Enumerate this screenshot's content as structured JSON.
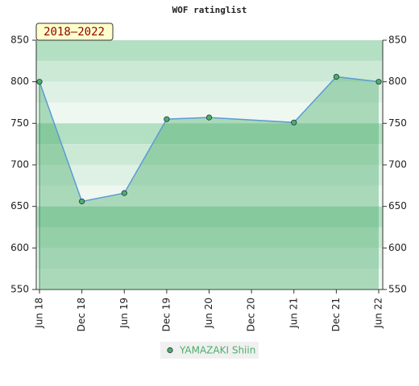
{
  "chart_data": {
    "type": "line",
    "title": "WOF ratinglist",
    "badge": "2018–2022",
    "categories": [
      "Jun 18",
      "Dec 18",
      "Jun 19",
      "Dec 19",
      "Jun 20",
      "Dec 20",
      "Jun 21",
      "Dec 21",
      "Jun 22"
    ],
    "series": [
      {
        "name": "YAMAZAKI Shiin",
        "color": "#4caf6a",
        "line_color": "#5b9bd5",
        "x": [
          "Jun 18",
          "Dec 18",
          "Jun 19",
          "Dec 19",
          "Jun 20",
          "Jun 21",
          "Dec 21",
          "Jun 22"
        ],
        "values": [
          800,
          656,
          666,
          755,
          757,
          751,
          806,
          800
        ]
      }
    ],
    "ylim": [
      550,
      850
    ],
    "yticks": [
      550,
      600,
      650,
      700,
      750,
      800,
      850
    ],
    "y2lim": [
      550,
      850
    ],
    "y2ticks": [
      550,
      600,
      650,
      700,
      750,
      800,
      850
    ]
  }
}
